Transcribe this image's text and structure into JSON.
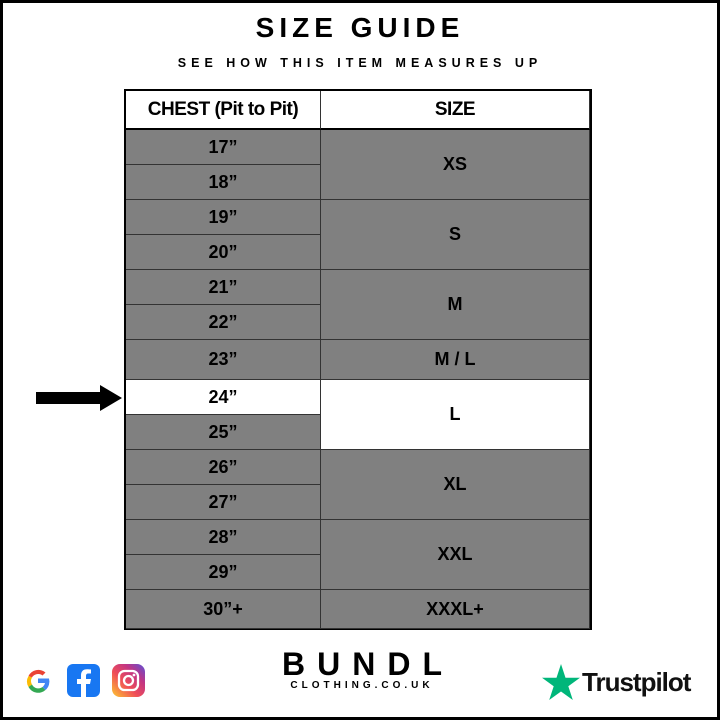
{
  "header": {
    "title": "SIZE GUIDE",
    "subtitle": "SEE HOW THIS ITEM MEASURES UP"
  },
  "table": {
    "columns": [
      "CHEST (Pit to Pit)",
      "SIZE"
    ],
    "chest": [
      "17”",
      "18”",
      "19”",
      "20”",
      "21”",
      "22”",
      "23”",
      "24”",
      "25”",
      "26”",
      "27”",
      "28”",
      "29”",
      "30”+"
    ],
    "sizes": [
      "XS",
      "S",
      "M",
      "M / L",
      "L",
      "XL",
      "XXL",
      "XXXL+"
    ],
    "highlighted_chest": "24”",
    "highlighted_size": "L",
    "colors": {
      "cell": "#808080",
      "highlight": "#ffffff",
      "border": "#000000"
    }
  },
  "footer": {
    "brand": "BUNDL",
    "brand_sub": "CLOTHING.CO.UK",
    "social_icons": [
      "google-icon",
      "facebook-icon",
      "instagram-icon"
    ],
    "trustpilot": "Trustpilot",
    "trustpilot_color": "#00b67a"
  }
}
